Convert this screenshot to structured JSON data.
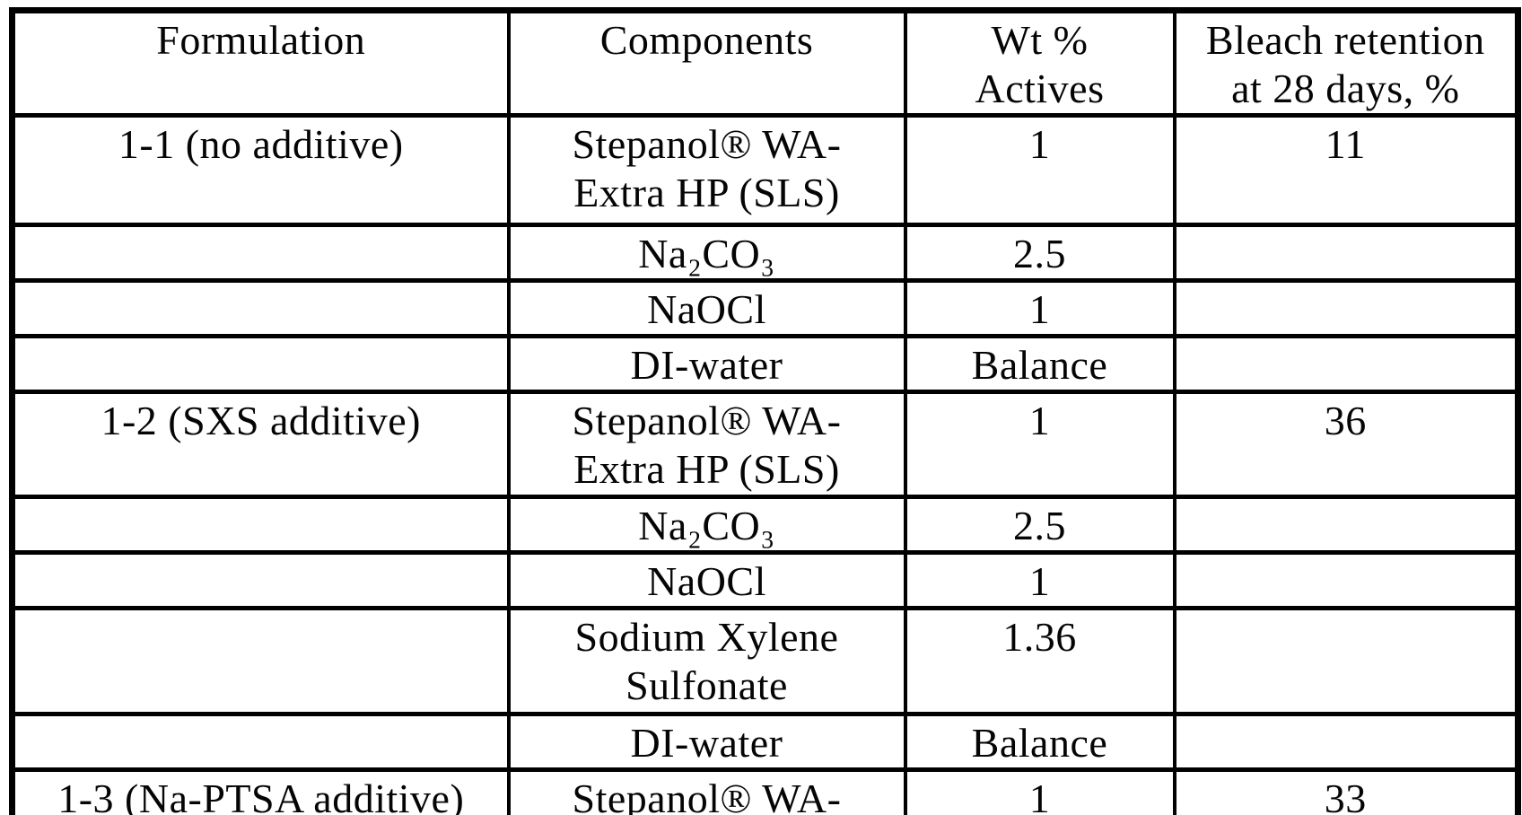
{
  "page": {
    "background_color": "#ffffff",
    "ink_color": "#000000",
    "kind": "scanned patent table"
  },
  "table": {
    "headers": [
      "Formulation",
      "Components",
      "Wt %\nActives",
      "Bleach retention\nat 28 days, %"
    ],
    "rows": [
      {
        "formulation": "1-1 (no additive)",
        "component": "Stepanol® WA-\nExtra HP (SLS)",
        "wt_pct_actives": "1",
        "bleach_retention_28d": "11"
      },
      {
        "formulation": "",
        "component": "Na₂CO₃",
        "wt_pct_actives": "2.5",
        "bleach_retention_28d": ""
      },
      {
        "formulation": "",
        "component": "NaOCl",
        "wt_pct_actives": "1",
        "bleach_retention_28d": ""
      },
      {
        "formulation": "",
        "component": "DI-water",
        "wt_pct_actives": "Balance",
        "bleach_retention_28d": ""
      },
      {
        "formulation": "1-2 (SXS additive)",
        "component": "Stepanol® WA-\nExtra HP (SLS)",
        "wt_pct_actives": "1",
        "bleach_retention_28d": "36"
      },
      {
        "formulation": "",
        "component": "Na₂CO₃",
        "wt_pct_actives": "2.5",
        "bleach_retention_28d": ""
      },
      {
        "formulation": "",
        "component": "NaOCl",
        "wt_pct_actives": "1",
        "bleach_retention_28d": ""
      },
      {
        "formulation": "",
        "component": "Sodium Xylene\nSulfonate",
        "wt_pct_actives": "1.36",
        "bleach_retention_28d": ""
      },
      {
        "formulation": "",
        "component": "DI-water",
        "wt_pct_actives": "Balance",
        "bleach_retention_28d": ""
      },
      {
        "formulation": "1-3 (Na-PTSA additive)",
        "component": "Stepanol® WA-",
        "wt_pct_actives": "1",
        "bleach_retention_28d": "33"
      }
    ]
  }
}
